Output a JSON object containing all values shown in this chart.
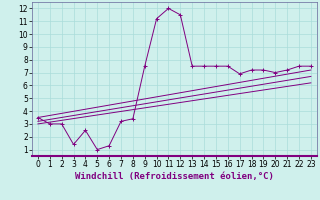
{
  "xlabel": "Windchill (Refroidissement éolien,°C)",
  "background_color": "#cff0ec",
  "grid_color": "#aaddda",
  "line_color": "#800080",
  "xlim": [
    -0.5,
    23.5
  ],
  "ylim": [
    0.5,
    12.5
  ],
  "xticks": [
    0,
    1,
    2,
    3,
    4,
    5,
    6,
    7,
    8,
    9,
    10,
    11,
    12,
    13,
    14,
    15,
    16,
    17,
    18,
    19,
    20,
    21,
    22,
    23
  ],
  "yticks": [
    1,
    2,
    3,
    4,
    5,
    6,
    7,
    8,
    9,
    10,
    11,
    12
  ],
  "line1_x": [
    0,
    1,
    2,
    3,
    4,
    5,
    6,
    7,
    8,
    9,
    10,
    11,
    12,
    13,
    14,
    15,
    16,
    17,
    18,
    19,
    20,
    21,
    22,
    23
  ],
  "line1_y": [
    3.5,
    3.0,
    3.0,
    1.4,
    2.5,
    1.0,
    1.3,
    3.2,
    3.4,
    7.5,
    11.2,
    12.0,
    11.5,
    7.5,
    7.5,
    7.5,
    7.5,
    6.9,
    7.2,
    7.2,
    7.0,
    7.2,
    7.5,
    7.5
  ],
  "line2_x": [
    0,
    23
  ],
  "line2_y": [
    3.5,
    7.2
  ],
  "line3_x": [
    0,
    23
  ],
  "line3_y": [
    3.2,
    6.7
  ],
  "line4_x": [
    0,
    23
  ],
  "line4_y": [
    3.0,
    6.2
  ],
  "xlabel_color": "#800080",
  "xlabel_fontsize": 6.5,
  "tick_fontsize": 5.5
}
